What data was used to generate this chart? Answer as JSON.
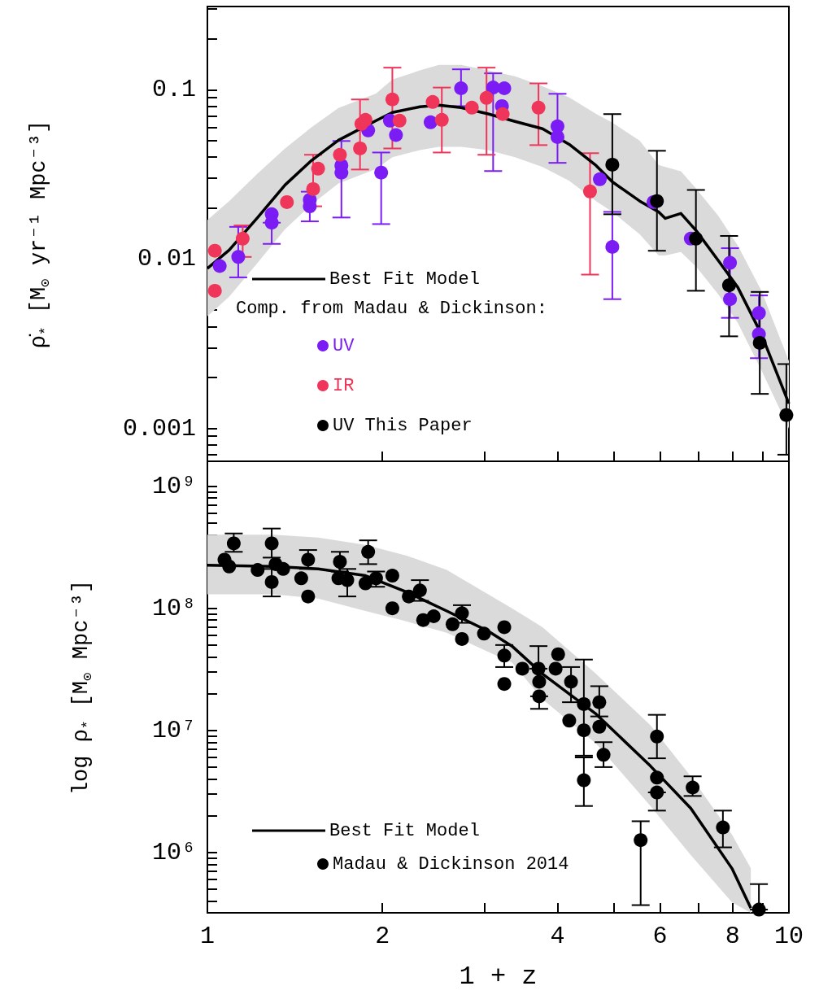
{
  "chart_data": [
    {
      "type": "scatter",
      "ylabel": "ρ̇$_{*}$ [M$_{⊙}$ yr⁻¹ Mpc⁻³]",
      "log": "xy",
      "tick_labels": "y",
      "legend": "bottom left",
      "legend_title": "Comp. from Madau & Dickinson:",
      "marker": "circle",
      "xlim": [
        1,
        10
      ],
      "ylim": [
        0.00064,
        0.31
      ],
      "xticks": [
        1,
        2,
        {
          "value": 3,
          "label": null
        },
        4,
        {
          "value": 5,
          "label": null
        },
        6,
        {
          "value": 7,
          "label": null
        },
        8,
        {
          "value": 9,
          "label": null
        },
        10
      ],
      "yticks": [
        {
          "value": 0.0007,
          "label": null
        },
        {
          "value": 0.0008,
          "label": null
        },
        {
          "value": 0.0009,
          "label": null
        },
        0.001,
        {
          "value": 0.002,
          "label": null
        },
        {
          "value": 0.003,
          "label": null
        },
        {
          "value": 0.004,
          "label": null
        },
        {
          "value": 0.005,
          "label": null
        },
        {
          "value": 0.006,
          "label": null
        },
        {
          "value": 0.007,
          "label": null
        },
        {
          "value": 0.008,
          "label": null
        },
        {
          "value": 0.009,
          "label": null
        },
        0.01,
        {
          "value": 0.02,
          "label": null
        },
        {
          "value": 0.03,
          "label": null
        },
        {
          "value": 0.04,
          "label": null
        },
        {
          "value": 0.05,
          "label": null
        },
        {
          "value": 0.06,
          "label": null
        },
        {
          "value": 0.07,
          "label": null
        },
        {
          "value": 0.08,
          "label": null
        },
        {
          "value": 0.09,
          "label": null
        },
        0.1,
        {
          "value": 0.2,
          "label": null
        },
        {
          "value": 0.3,
          "label": null
        }
      ],
      "series": [
        {
          "name": "Best Fit Model",
          "type": "line",
          "marker": "none",
          "color": "#000000",
          "x": [
            1,
            1.09,
            1.22,
            1.36,
            1.51,
            1.68,
            1.95,
            2.08,
            2.32,
            2.5,
            2.73,
            3.04,
            3.38,
            3.77,
            4.19,
            4.66,
            4.97,
            5.54,
            5.97,
            6.13,
            6.52,
            6.93,
            7.56,
            8.17,
            8.97,
            10
          ],
          "values": [
            0.0088,
            0.0113,
            0.0176,
            0.0274,
            0.0382,
            0.0503,
            0.0657,
            0.0734,
            0.0793,
            0.081,
            0.0784,
            0.072,
            0.065,
            0.0588,
            0.0476,
            0.0357,
            0.0286,
            0.022,
            0.019,
            0.0174,
            0.0186,
            0.0147,
            0.0098,
            0.0068,
            0.0036,
            0.0014
          ],
          "lower": [
            0.0046,
            0.006,
            0.0095,
            0.015,
            0.021,
            0.028,
            0.034,
            0.04,
            0.044,
            0.046,
            0.046,
            0.044,
            0.04,
            0.035,
            0.029,
            0.022,
            0.019,
            0.014,
            0.0105,
            0.0105,
            0.011,
            0.009,
            0.0062,
            0.0042,
            0.0022,
            0.001
          ],
          "upper": [
            0.017,
            0.022,
            0.032,
            0.045,
            0.06,
            0.078,
            0.095,
            0.115,
            0.13,
            0.14,
            0.14,
            0.13,
            0.12,
            0.105,
            0.09,
            0.072,
            0.064,
            0.05,
            0.036,
            0.035,
            0.033,
            0.026,
            0.018,
            0.012,
            0.0065,
            0.0025
          ]
        },
        {
          "name": "UV",
          "color": "#7b1cf5",
          "x": [
            1.05,
            1.13,
            1.29,
            1.29,
            1.5,
            1.5,
            1.7,
            1.7,
            1.89,
            1.99,
            2.06,
            2.11,
            2.42,
            2.73,
            3.1,
            3.24,
            3.21,
            4.0,
            4.0,
            4.73,
            4.97,
            5.85,
            6.78,
            7.92,
            7.92,
            8.88,
            8.88
          ],
          "values": [
            0.0091,
            0.0103,
            0.0184,
            0.0164,
            0.0224,
            0.0205,
            0.0357,
            0.0324,
            0.0575,
            0.0324,
            0.0657,
            0.054,
            0.0642,
            0.102,
            0.103,
            0.102,
            0.08,
            0.0608,
            0.0526,
            0.0296,
            0.0118,
            0.0217,
            0.0132,
            0.0095,
            0.0058,
            0.0048,
            0.0036
          ],
          "errors": [
            null,
            [
              0.0078,
              0.0155
            ],
            null,
            [
              0.0123,
              0.0164
            ],
            null,
            [
              0.0167,
              0.025
            ],
            null,
            [
              0.0176,
              0.0498
            ],
            null,
            [
              0.0161,
              0.0426
            ],
            null,
            null,
            null,
            [
              0.08,
              0.132
            ],
            [
              0.0331,
              0.125
            ],
            null,
            null,
            [
              0.037,
              0.0946
            ],
            null,
            null,
            [
              0.0058,
              0.019
            ],
            null,
            null,
            null,
            [
              0.0045,
              0.0116
            ],
            null,
            [
              0.0026,
              0.0061
            ]
          ]
        },
        {
          "name": "IR",
          "color": "#f0355a",
          "x": [
            1.03,
            1.03,
            1.15,
            1.37,
            1.52,
            1.55,
            1.69,
            1.83,
            1.84,
            1.87,
            2.08,
            2.14,
            2.44,
            2.53,
            2.85,
            3.02,
            3.22,
            3.71,
            4.55
          ],
          "values": [
            0.0112,
            0.0065,
            0.0132,
            0.0217,
            0.0259,
            0.0342,
            0.0413,
            0.045,
            0.0628,
            0.0664,
            0.0876,
            0.0657,
            0.0847,
            0.0664,
            0.0784,
            0.0895,
            0.0718,
            0.0784,
            0.0251
          ],
          "errors": [
            null,
            null,
            [
              0.0103,
              0.0158
            ],
            null,
            [
              0.0205,
              0.0413
            ],
            null,
            null,
            [
              0.0338,
              0.0876
            ],
            null,
            null,
            [
              0.045,
              0.135
            ],
            null,
            null,
            [
              0.0426,
              0.103
            ],
            null,
            [
              0.0413,
              0.135
            ],
            null,
            [
              0.0471,
              0.109
            ],
            [
              0.0081,
              0.0422
            ]
          ]
        },
        {
          "name": "UV This Paper",
          "color": "#000000",
          "x": [
            4.97,
            5.93,
            6.92,
            7.89,
            8.91,
            9.9
          ],
          "values": [
            0.0361,
            0.022,
            0.0132,
            0.007,
            0.0032,
            0.0012
          ],
          "errors": [
            [
              0.0184,
              0.0718
            ],
            [
              0.0112,
              0.0436
            ],
            [
              0.0065,
              0.0256
            ],
            [
              0.0035,
              0.0137
            ],
            [
              0.0016,
              0.0064
            ],
            [
              0.0007,
              0.0024
            ]
          ]
        }
      ]
    },
    {
      "type": "scatter",
      "xlabel": "1 + z",
      "ylabel": "log ρ$_{*}$ [M$_{⊙}$ Mpc⁻³]",
      "log": "xy",
      "legend": "bottom left",
      "marker": "circle",
      "xlim": [
        1,
        10
      ],
      "ylim": [
        320000,
        1600000000
      ],
      "xticks": [
        1,
        2,
        {
          "value": 3,
          "label": null
        },
        4,
        {
          "value": 5,
          "label": null
        },
        6,
        {
          "value": 7,
          "label": null
        },
        8,
        {
          "value": 9,
          "label": null
        },
        10
      ],
      "yticks": [
        {
          "value": 400000,
          "label": null
        },
        {
          "value": 500000,
          "label": null
        },
        {
          "value": 600000,
          "label": null
        },
        {
          "value": 700000,
          "label": null
        },
        {
          "value": 800000,
          "label": null
        },
        {
          "value": 900000,
          "label": null
        },
        {
          "value": 1000000,
          "label": "10⁶"
        },
        {
          "value": 2000000,
          "label": null
        },
        {
          "value": 3000000,
          "label": null
        },
        {
          "value": 4000000,
          "label": null
        },
        {
          "value": 5000000,
          "label": null
        },
        {
          "value": 6000000,
          "label": null
        },
        {
          "value": 7000000,
          "label": null
        },
        {
          "value": 8000000,
          "label": null
        },
        {
          "value": 9000000,
          "label": null
        },
        {
          "value": 10000000,
          "label": "10⁷"
        },
        {
          "value": 20000000,
          "label": null
        },
        {
          "value": 30000000,
          "label": null
        },
        {
          "value": 40000000,
          "label": null
        },
        {
          "value": 50000000,
          "label": null
        },
        {
          "value": 60000000,
          "label": null
        },
        {
          "value": 70000000,
          "label": null
        },
        {
          "value": 80000000,
          "label": null
        },
        {
          "value": 90000000,
          "label": null
        },
        {
          "value": 100000000,
          "label": "10⁸"
        },
        {
          "value": 200000000,
          "label": null
        },
        {
          "value": 300000000,
          "label": null
        },
        {
          "value": 400000000,
          "label": null
        },
        {
          "value": 500000000,
          "label": null
        },
        {
          "value": 600000000,
          "label": null
        },
        {
          "value": 700000000,
          "label": null
        },
        {
          "value": 800000000,
          "label": null
        },
        {
          "value": 900000000,
          "label": null
        },
        {
          "value": 1000000000,
          "label": "10⁹"
        }
      ],
      "series": [
        {
          "name": "Best Fit Model",
          "type": "line",
          "marker": "none",
          "color": "#000000",
          "x": [
            1,
            1.3,
            1.55,
            1.87,
            2.2,
            2.58,
            3.04,
            3.34,
            3.77,
            4.66,
            5.78,
            6.78,
            7.98,
            8.6
          ],
          "values": [
            225000000,
            220000000,
            210000000,
            185000000,
            136000000,
            95000000,
            65000000,
            49000000,
            29000000,
            13600000,
            5100000,
            2300000,
            740000,
            350000
          ],
          "lower": [
            130000000,
            130000000,
            120000000,
            95000000,
            78000000,
            63000000,
            44000000,
            36000000,
            18000000,
            7800000,
            2400000,
            950000,
            390000,
            320000
          ],
          "upper": [
            400000000,
            400000000,
            380000000,
            330000000,
            270000000,
            206000000,
            130000000,
            100000000,
            70000000,
            29000000,
            11000000,
            4200000,
            1400000,
            740000
          ]
        },
        {
          "name": "Madau & Dickinson 2014",
          "color": "#000000",
          "x": [
            1.07,
            1.09,
            1.11,
            1.22,
            1.29,
            1.31,
            1.29,
            1.35,
            1.45,
            1.49,
            1.49,
            1.69,
            1.68,
            1.74,
            1.89,
            1.87,
            1.95,
            2.08,
            2.08,
            2.22,
            2.32,
            2.35,
            2.45,
            2.64,
            2.74,
            2.74,
            2.99,
            3.24,
            3.24,
            3.24,
            3.48,
            3.71,
            3.72,
            3.72,
            4.01,
            3.97,
            4.22,
            4.19,
            4.44,
            4.44,
            4.44,
            4.72,
            4.72,
            4.8,
            5.56,
            5.93,
            5.93,
            5.93,
            6.83,
            7.7,
            8.88
          ],
          "values": [
            250000000,
            220000000,
            340000000,
            206000000,
            340000000,
            230000000,
            164000000,
            210000000,
            176000000,
            250000000,
            125000000,
            240000000,
            176000000,
            170000000,
            290000000,
            160000000,
            176000000,
            185000000,
            100000000,
            125000000,
            140000000,
            80000000,
            86000000,
            74000000,
            91000000,
            56000000,
            62000000,
            70000000,
            41000000,
            24000000,
            32000000,
            32000000,
            25000000,
            19000000,
            42000000,
            32000000,
            25000000,
            12000000,
            16400000,
            10000000,
            3900000,
            17000000,
            10700000,
            6300000,
            1260000,
            8900000,
            4100000,
            3100000,
            3400000,
            1600000,
            340000
          ],
          "errors": [
            null,
            null,
            [
              290000000,
              410000000
            ],
            null,
            [
              260000000,
              450000000
            ],
            null,
            [
              125000000,
              210000000
            ],
            null,
            null,
            [
              210000000,
              300000000
            ],
            null,
            [
              200000000,
              290000000
            ],
            null,
            [
              125000000,
              210000000
            ],
            [
              230000000,
              360000000
            ],
            null,
            [
              150000000,
              200000000
            ],
            null,
            null,
            null,
            [
              115000000,
              170000000
            ],
            null,
            null,
            null,
            [
              76000000,
              106000000
            ],
            null,
            null,
            null,
            [
              33000000,
              50000000
            ],
            null,
            null,
            [
              32000000,
              49000000
            ],
            null,
            [
              15000000,
              19000000
            ],
            null,
            null,
            [
              17000000,
              33000000
            ],
            null,
            null,
            [
              6200000,
              38000000
            ],
            [
              2400000,
              6000000
            ],
            [
              13000000,
              23000000
            ],
            null,
            [
              5000000,
              8000000
            ],
            [
              370000,
              1800000
            ],
            [
              5900000,
              13400000
            ],
            null,
            [
              2200000,
              3100000
            ],
            [
              2900000,
              4200000
            ],
            [
              1100000,
              2200000
            ],
            [
              340000,
              550000
            ]
          ]
        }
      ]
    }
  ]
}
